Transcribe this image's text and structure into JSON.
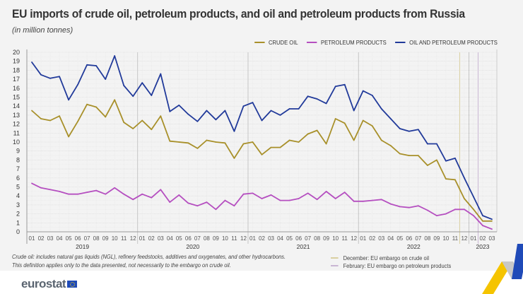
{
  "header": {
    "title": "EU imports of crude oil, petroleum products, and oil and petroleum products from Russia",
    "subtitle": "(in million tonnes)"
  },
  "footnote": {
    "line1": "Crude oil: includes natural gas liquids (NGL), refinery feedstocks, additives and oxygenates, and other hydrocarbons.",
    "line2": "This definition applies only to the data presented, not necessarily to the embargo on crude oil."
  },
  "embargo_legend": [
    {
      "label": "December: EU embargo on crude oil",
      "color": "#d9cfa0"
    },
    {
      "label": "February: EU embargo on petroleum products",
      "color": "#c9b6d3"
    }
  ],
  "brand": {
    "logo_text": "eurostat"
  },
  "chart_data": {
    "type": "line",
    "title": "EU imports of crude oil, petroleum products, and oil and petroleum products from Russia",
    "subtitle": "(in million tonnes)",
    "ylim": [
      0,
      20
    ],
    "yticks": [
      0,
      1,
      2,
      3,
      4,
      5,
      6,
      7,
      8,
      9,
      10,
      11,
      12,
      13,
      14,
      15,
      16,
      17,
      18,
      19,
      20
    ],
    "grid": true,
    "legend_position": "top-right",
    "years": [
      {
        "label": "2019",
        "months": 12
      },
      {
        "label": "2020",
        "months": 12
      },
      {
        "label": "2021",
        "months": 12
      },
      {
        "label": "2022",
        "months": 12
      },
      {
        "label": "2023",
        "months": 3
      }
    ],
    "x": [
      "01",
      "02",
      "03",
      "04",
      "05",
      "06",
      "07",
      "08",
      "09",
      "10",
      "11",
      "12",
      "01",
      "02",
      "03",
      "04",
      "05",
      "06",
      "07",
      "08",
      "09",
      "10",
      "11",
      "12",
      "01",
      "02",
      "03",
      "04",
      "05",
      "06",
      "07",
      "08",
      "09",
      "10",
      "11",
      "12",
      "01",
      "02",
      "03",
      "04",
      "05",
      "06",
      "07",
      "08",
      "09",
      "10",
      "11",
      "12",
      "01",
      "02",
      "03"
    ],
    "series": [
      {
        "name": "CRUDE OIL",
        "color": "#a8902a",
        "values": [
          13.5,
          12.6,
          12.4,
          12.9,
          10.6,
          12.3,
          14.2,
          13.9,
          12.8,
          14.7,
          12.2,
          11.5,
          12.4,
          11.4,
          12.9,
          10.1,
          10.0,
          9.9,
          9.3,
          10.2,
          10.0,
          9.9,
          8.2,
          9.8,
          10.0,
          8.6,
          9.4,
          9.4,
          10.2,
          10.0,
          10.9,
          11.3,
          9.8,
          12.6,
          12.1,
          10.2,
          12.4,
          11.8,
          10.2,
          9.6,
          8.7,
          8.5,
          8.5,
          7.4,
          8.0,
          5.9,
          5.8,
          3.7,
          2.5,
          1.2,
          1.2
        ]
      },
      {
        "name": "PETROLEUM PRODUCTS",
        "color": "#b54fc0",
        "values": [
          5.4,
          4.9,
          4.7,
          4.5,
          4.2,
          4.2,
          4.4,
          4.6,
          4.2,
          4.9,
          4.2,
          3.6,
          4.2,
          3.8,
          4.7,
          3.3,
          4.1,
          3.2,
          2.9,
          3.3,
          2.5,
          3.5,
          2.9,
          4.2,
          4.3,
          3.7,
          4.1,
          3.5,
          3.5,
          3.7,
          4.3,
          3.6,
          4.5,
          3.7,
          4.4,
          3.4,
          3.4,
          3.5,
          3.6,
          3.1,
          2.8,
          2.7,
          2.9,
          2.4,
          1.8,
          2.0,
          2.5,
          2.5,
          1.8,
          0.7,
          0.3
        ]
      },
      {
        "name": "OIL AND PETROLEUM PRODUCTS",
        "color": "#213a9a",
        "values": [
          18.9,
          17.5,
          17.1,
          17.3,
          14.7,
          16.4,
          18.6,
          18.5,
          17.0,
          19.6,
          16.3,
          15.1,
          16.6,
          15.2,
          17.6,
          13.4,
          14.1,
          13.1,
          12.3,
          13.5,
          12.5,
          13.5,
          11.2,
          14.0,
          14.4,
          12.4,
          13.5,
          13.0,
          13.7,
          13.7,
          15.1,
          14.8,
          14.3,
          16.2,
          16.4,
          13.5,
          15.7,
          15.2,
          13.7,
          12.6,
          11.5,
          11.2,
          11.4,
          9.8,
          9.8,
          7.9,
          8.2,
          6.0,
          3.9,
          1.8,
          1.4
        ]
      }
    ],
    "annotations": [
      {
        "label": "December: EU embargo on crude oil",
        "at": "2022-12",
        "color": "#d9cfa0"
      },
      {
        "label": "February: EU embargo on petroleum products",
        "at": "2023-02",
        "color": "#c9b6d3"
      }
    ]
  }
}
